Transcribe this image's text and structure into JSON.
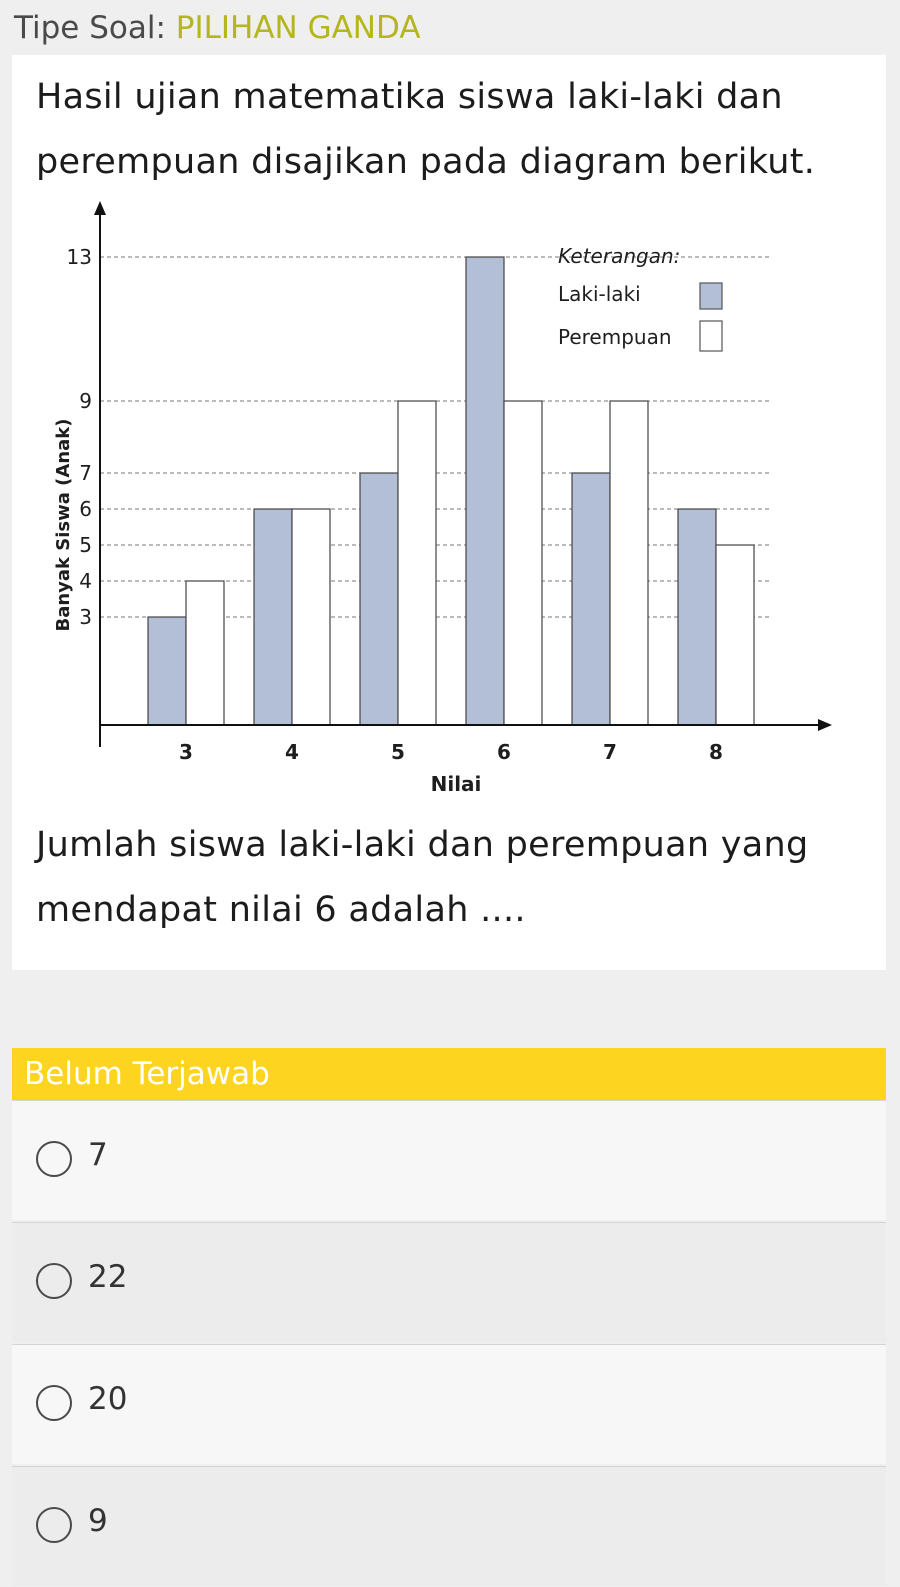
{
  "header": {
    "type_label": "Tipe Soal: ",
    "type_value": "PILIHAN GANDA"
  },
  "question": {
    "intro_lines": [
      "Hasil ujian matematika siswa laki-laki dan",
      "perempuan disajikan pada diagram berikut."
    ],
    "prompt_lines": [
      "Jumlah siswa laki-laki dan perempuan yang",
      "mendapat nilai 6 adalah ...."
    ]
  },
  "chart_data": {
    "type": "bar",
    "xlabel": "Nilai",
    "ylabel": "Banyak Siswa (Anak)",
    "categories": [
      "3",
      "4",
      "5",
      "6",
      "7",
      "8"
    ],
    "yticks": [
      3,
      4,
      5,
      6,
      7,
      9,
      13
    ],
    "ylim": [
      0,
      14
    ],
    "series": [
      {
        "name": "Laki-laki",
        "values": [
          3,
          6,
          7,
          13,
          7,
          6
        ],
        "color": "#b3bfd6"
      },
      {
        "name": "Perempuan",
        "values": [
          4,
          6,
          9,
          9,
          9,
          5
        ],
        "color": "#ffffff"
      }
    ],
    "legend": {
      "title": "Keterangan:",
      "position": "top-right"
    },
    "grid": "dashed reference lines"
  },
  "status": {
    "label": "Belum Terjawab",
    "color": "#fdd420"
  },
  "options": [
    {
      "label": "7"
    },
    {
      "label": "22"
    },
    {
      "label": "20"
    },
    {
      "label": "9"
    }
  ]
}
